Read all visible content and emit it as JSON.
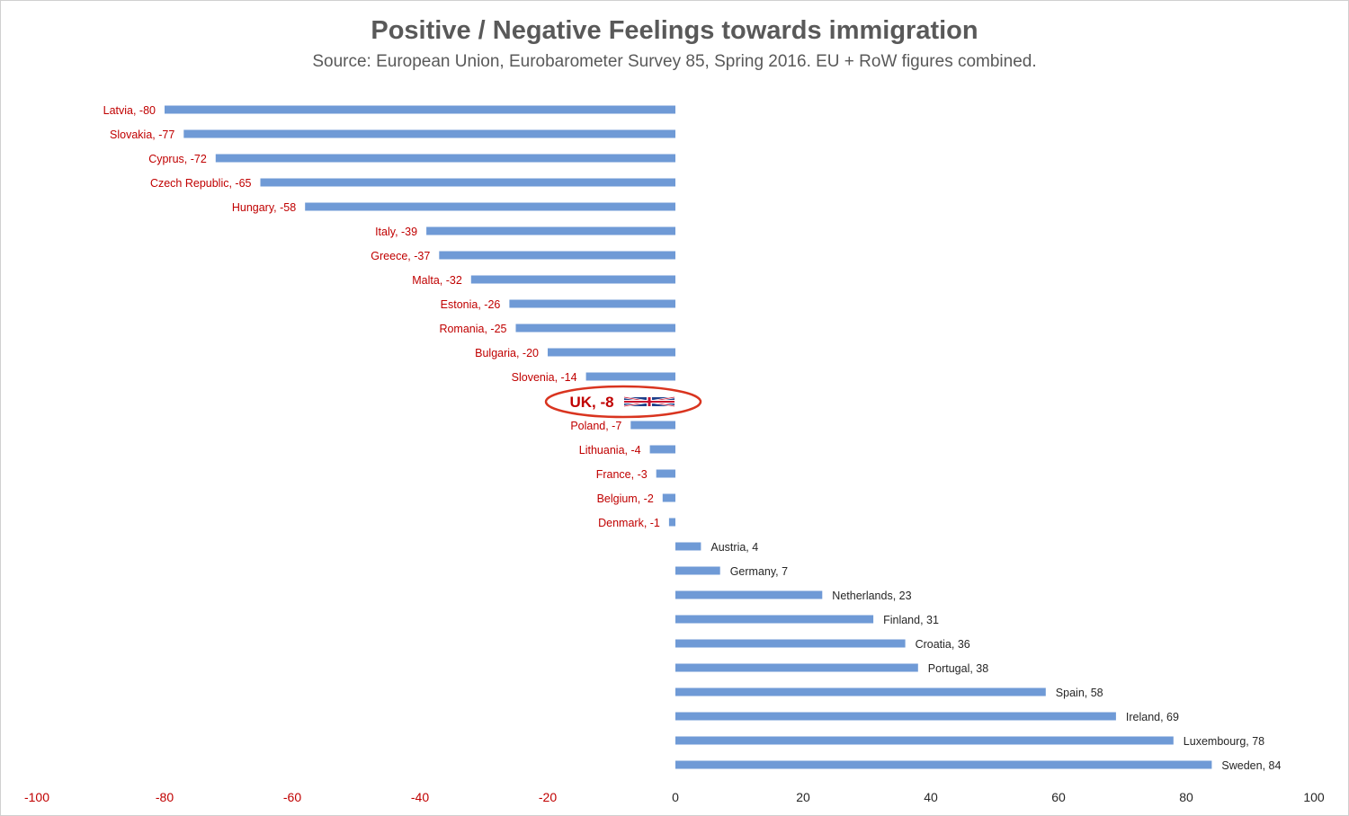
{
  "chart_data": {
    "type": "bar",
    "orientation": "horizontal",
    "title": "Positive / Negative Feelings towards immigration",
    "subtitle": "Source: European Union, Eurobarometer Survey 85, Spring 2016. EU + RoW figures combined.",
    "xlim": [
      -100,
      100
    ],
    "x_ticks": [
      "-100",
      "-80",
      "-60",
      "-40",
      "-20",
      "0",
      "20",
      "40",
      "60",
      "80",
      "100"
    ],
    "grid": false,
    "colors": {
      "bar": "#6f9ad6",
      "negative_label": "#c00000",
      "positive_label": "#262626",
      "highlight": "#d9341f",
      "tick_label": "#c00000"
    },
    "bars": [
      {
        "label": "Latvia, -80",
        "value": -80
      },
      {
        "label": "Slovakia, -77",
        "value": -77
      },
      {
        "label": "Cyprus, -72",
        "value": -72
      },
      {
        "label": "Czech Republic, -65",
        "value": -65
      },
      {
        "label": "Hungary, -58",
        "value": -58
      },
      {
        "label": "Italy, -39",
        "value": -39
      },
      {
        "label": "Greece, -37",
        "value": -37
      },
      {
        "label": "Malta, -32",
        "value": -32
      },
      {
        "label": "Estonia, -26",
        "value": -26
      },
      {
        "label": "Romania, -25",
        "value": -25
      },
      {
        "label": "Bulgaria, -20",
        "value": -20
      },
      {
        "label": "Slovenia, -14",
        "value": -14
      },
      {
        "label": "UK, -8",
        "value": -8,
        "highlight": true,
        "icon": "uk-flag-icon"
      },
      {
        "label": "Poland, -7",
        "value": -7
      },
      {
        "label": "Lithuania, -4",
        "value": -4
      },
      {
        "label": "France, -3",
        "value": -3
      },
      {
        "label": "Belgium, -2",
        "value": -2
      },
      {
        "label": "Denmark, -1",
        "value": -1
      },
      {
        "label": "Austria, 4",
        "value": 4
      },
      {
        "label": "Germany, 7",
        "value": 7
      },
      {
        "label": "Netherlands, 23",
        "value": 23
      },
      {
        "label": "Finland, 31",
        "value": 31
      },
      {
        "label": "Croatia, 36",
        "value": 36
      },
      {
        "label": "Portugal, 38",
        "value": 38
      },
      {
        "label": "Spain, 58",
        "value": 58
      },
      {
        "label": "Ireland, 69",
        "value": 69
      },
      {
        "label": "Luxembourg, 78",
        "value": 78
      },
      {
        "label": "Sweden, 84",
        "value": 84
      }
    ]
  }
}
